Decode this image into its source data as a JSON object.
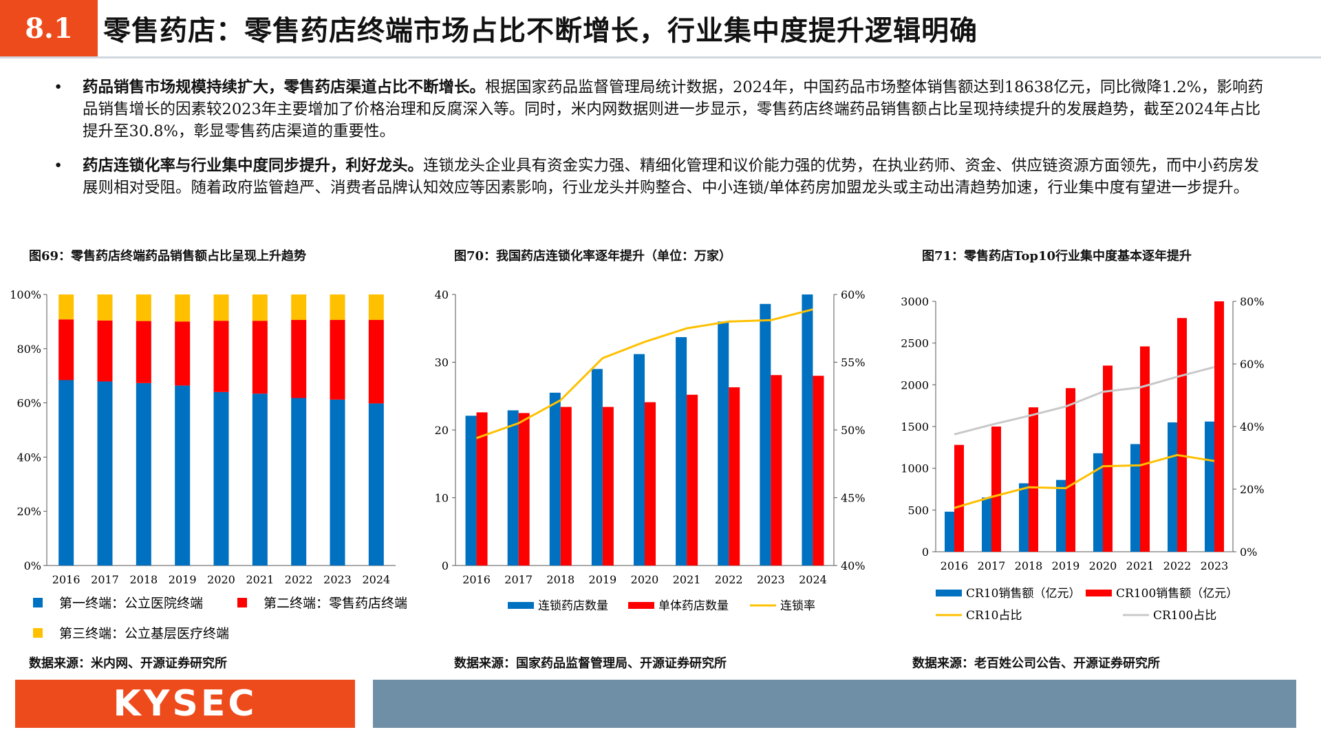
{
  "header": {
    "section": "8.1",
    "title": "零售药店：零售药店终端市场占比不断增长，行业集中度提升逻辑明确"
  },
  "bullets": [
    {
      "mark": "•",
      "bold": "药品销售市场规模持续扩大，零售药店渠道占比不断增长。",
      "text": "根据国家药品监督管理局统计数据，2024年，中国药品市场整体销售额达到18638亿元，同比微降1.2%，影响药品销售增长的因素较2023年主要增加了价格治理和反腐深入等。同时，米内网数据则进一步显示，零售药店终端药品销售额占比呈现持续提升的发展趋势，截至2024年占比提升至30.8%，彰显零售药店渠道的重要性。"
    },
    {
      "mark": "•",
      "bold": "药店连锁化率与行业集中度同步提升，利好龙头。",
      "text": "连锁龙头企业具有资金实力强、精细化管理和议价能力强的优势，在执业药师、资金、供应链资源方面领先，而中小药房发展则相对受阻。随着政府监管趋严、消费者品牌认知效应等因素影响，行业龙头并购整合、中小连锁/单体药房加盟龙头或主动出清趋势加速，行业集中度有望进一步提升。"
    }
  ],
  "figures": [
    {
      "title": "图69：零售药店终端药品销售额占比呈现上升趋势",
      "source": "数据来源：米内网、开源证券研究所"
    },
    {
      "title": "图70：我国药店连锁化率逐年提升（单位：万家）",
      "source": "数据来源：国家药品监督管理局、开源证券研究所"
    },
    {
      "title": "图71：零售药店Top10行业集中度基本逐年提升",
      "source": "数据来源：老百姓公司公告、开源证券研究所"
    }
  ],
  "chart_data": [
    {
      "type": "bar",
      "stacked": true,
      "categories": [
        "2016",
        "2017",
        "2018",
        "2019",
        "2020",
        "2021",
        "2022",
        "2023",
        "2024"
      ],
      "ylim": [
        0,
        100
      ],
      "yticks": [
        "0%",
        "20%",
        "40%",
        "60%",
        "80%",
        "100%"
      ],
      "series": [
        {
          "name": "第一终端：公立医院终端",
          "color": "#0070c0",
          "values": [
            68.4,
            67.9,
            67.3,
            66.4,
            64.0,
            63.4,
            61.8,
            61.2,
            59.8
          ]
        },
        {
          "name": "第二终端：零售药店终端",
          "color": "#ff0000",
          "values": [
            22.4,
            22.5,
            22.9,
            23.6,
            26.3,
            26.9,
            28.8,
            29.4,
            30.8
          ]
        },
        {
          "name": "第三终端：公立基层医疗终端",
          "color": "#ffc000",
          "values": [
            9.2,
            9.6,
            9.8,
            10.0,
            9.7,
            9.7,
            9.4,
            9.4,
            9.4
          ]
        }
      ]
    },
    {
      "type": "bar",
      "categories": [
        "2016",
        "2017",
        "2018",
        "2019",
        "2020",
        "2021",
        "2022",
        "2023",
        "2024"
      ],
      "ylim": [
        0,
        40
      ],
      "yticks": [
        "0",
        "10",
        "20",
        "30",
        "40"
      ],
      "y2lim": [
        40,
        60
      ],
      "y2ticks": [
        "40%",
        "45%",
        "50%",
        "55%",
        "60%"
      ],
      "series": [
        {
          "name": "连锁药店数量",
          "color": "#0070c0",
          "axis": "left",
          "values": [
            22.1,
            22.9,
            25.5,
            29.0,
            31.2,
            33.7,
            36.0,
            38.6,
            40.0
          ]
        },
        {
          "name": "单体药店数量",
          "color": "#ff0000",
          "axis": "left",
          "values": [
            22.6,
            22.5,
            23.4,
            23.4,
            24.1,
            25.2,
            26.3,
            28.1,
            28.0
          ]
        },
        {
          "name": "连锁率",
          "color": "#ffc000",
          "axis": "right",
          "type": "line",
          "values": [
            49.4,
            50.5,
            52.2,
            55.3,
            56.5,
            57.5,
            58.0,
            58.1,
            58.9
          ]
        }
      ]
    },
    {
      "type": "bar",
      "categories": [
        "2016",
        "2017",
        "2018",
        "2019",
        "2020",
        "2021",
        "2022",
        "2023"
      ],
      "ylim": [
        0,
        3000
      ],
      "yticks": [
        "0",
        "500",
        "1000",
        "1500",
        "2000",
        "2500",
        "3000"
      ],
      "y2lim": [
        0,
        80
      ],
      "y2ticks": [
        "0%",
        "20%",
        "40%",
        "60%",
        "80%"
      ],
      "series": [
        {
          "name": "CR10销售额（亿元）",
          "color": "#0070c0",
          "axis": "left",
          "values": [
            480,
            650,
            820,
            860,
            1180,
            1290,
            1550,
            1560
          ]
        },
        {
          "name": "CR100销售额（亿元）",
          "color": "#ff0000",
          "axis": "left",
          "values": [
            1280,
            1500,
            1730,
            1960,
            2230,
            2460,
            2800,
            3000
          ]
        },
        {
          "name": "CR10占比",
          "color": "#ffc000",
          "axis": "right",
          "type": "line",
          "values": [
            14.0,
            17.5,
            20.6,
            20.3,
            27.3,
            27.6,
            30.9,
            29.0
          ]
        },
        {
          "name": "CR100占比",
          "color": "#c8c8c8",
          "axis": "right",
          "type": "line",
          "values": [
            37.5,
            40.6,
            43.4,
            46.4,
            51.1,
            52.5,
            55.9,
            59.0
          ]
        }
      ]
    }
  ],
  "footer": {
    "logo": "KYSEC"
  }
}
